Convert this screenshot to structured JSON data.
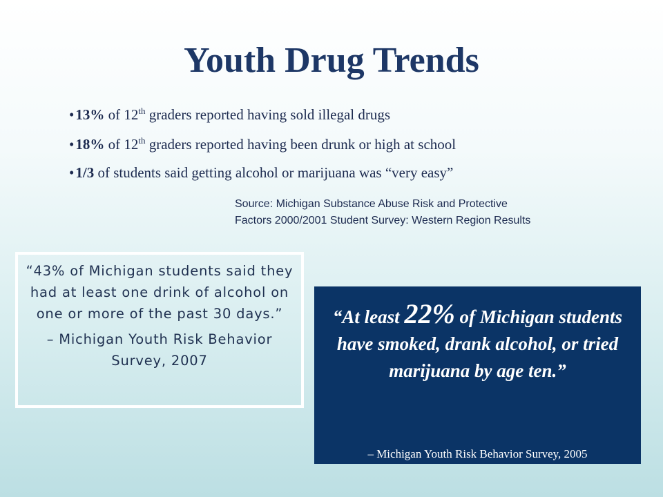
{
  "title": "Youth Drug Trends",
  "bullets": [
    {
      "bold": "13%",
      "text1": " of 12",
      "sup": "th",
      "text2": " graders reported having sold illegal drugs"
    },
    {
      "bold": "18%",
      "text1": " of 12",
      "sup": "th",
      "text2": " graders reported having been drunk or high at school"
    },
    {
      "bold": "1/3",
      "text1": " of students said getting alcohol or marijuana was “very easy”"
    }
  ],
  "source": [
    "Source: Michigan Substance Abuse Risk and Protective",
    "Factors 2000/2001 Student Survey: Western Region Results"
  ],
  "left_box": {
    "quote": "“43% of Michigan students said they had at least one drink of alcohol on one or more of the past 30 days.”",
    "attribution": "– Michigan Youth Risk Behavior Survey, 2007"
  },
  "right_box": {
    "quote_start": "“At least ",
    "highlight": "22%",
    "quote_end": " of Michigan students have smoked, drank alcohol, or tried marijuana by age ten.”",
    "attribution": "– Michigan Youth Risk Behavior Survey, 2005"
  }
}
